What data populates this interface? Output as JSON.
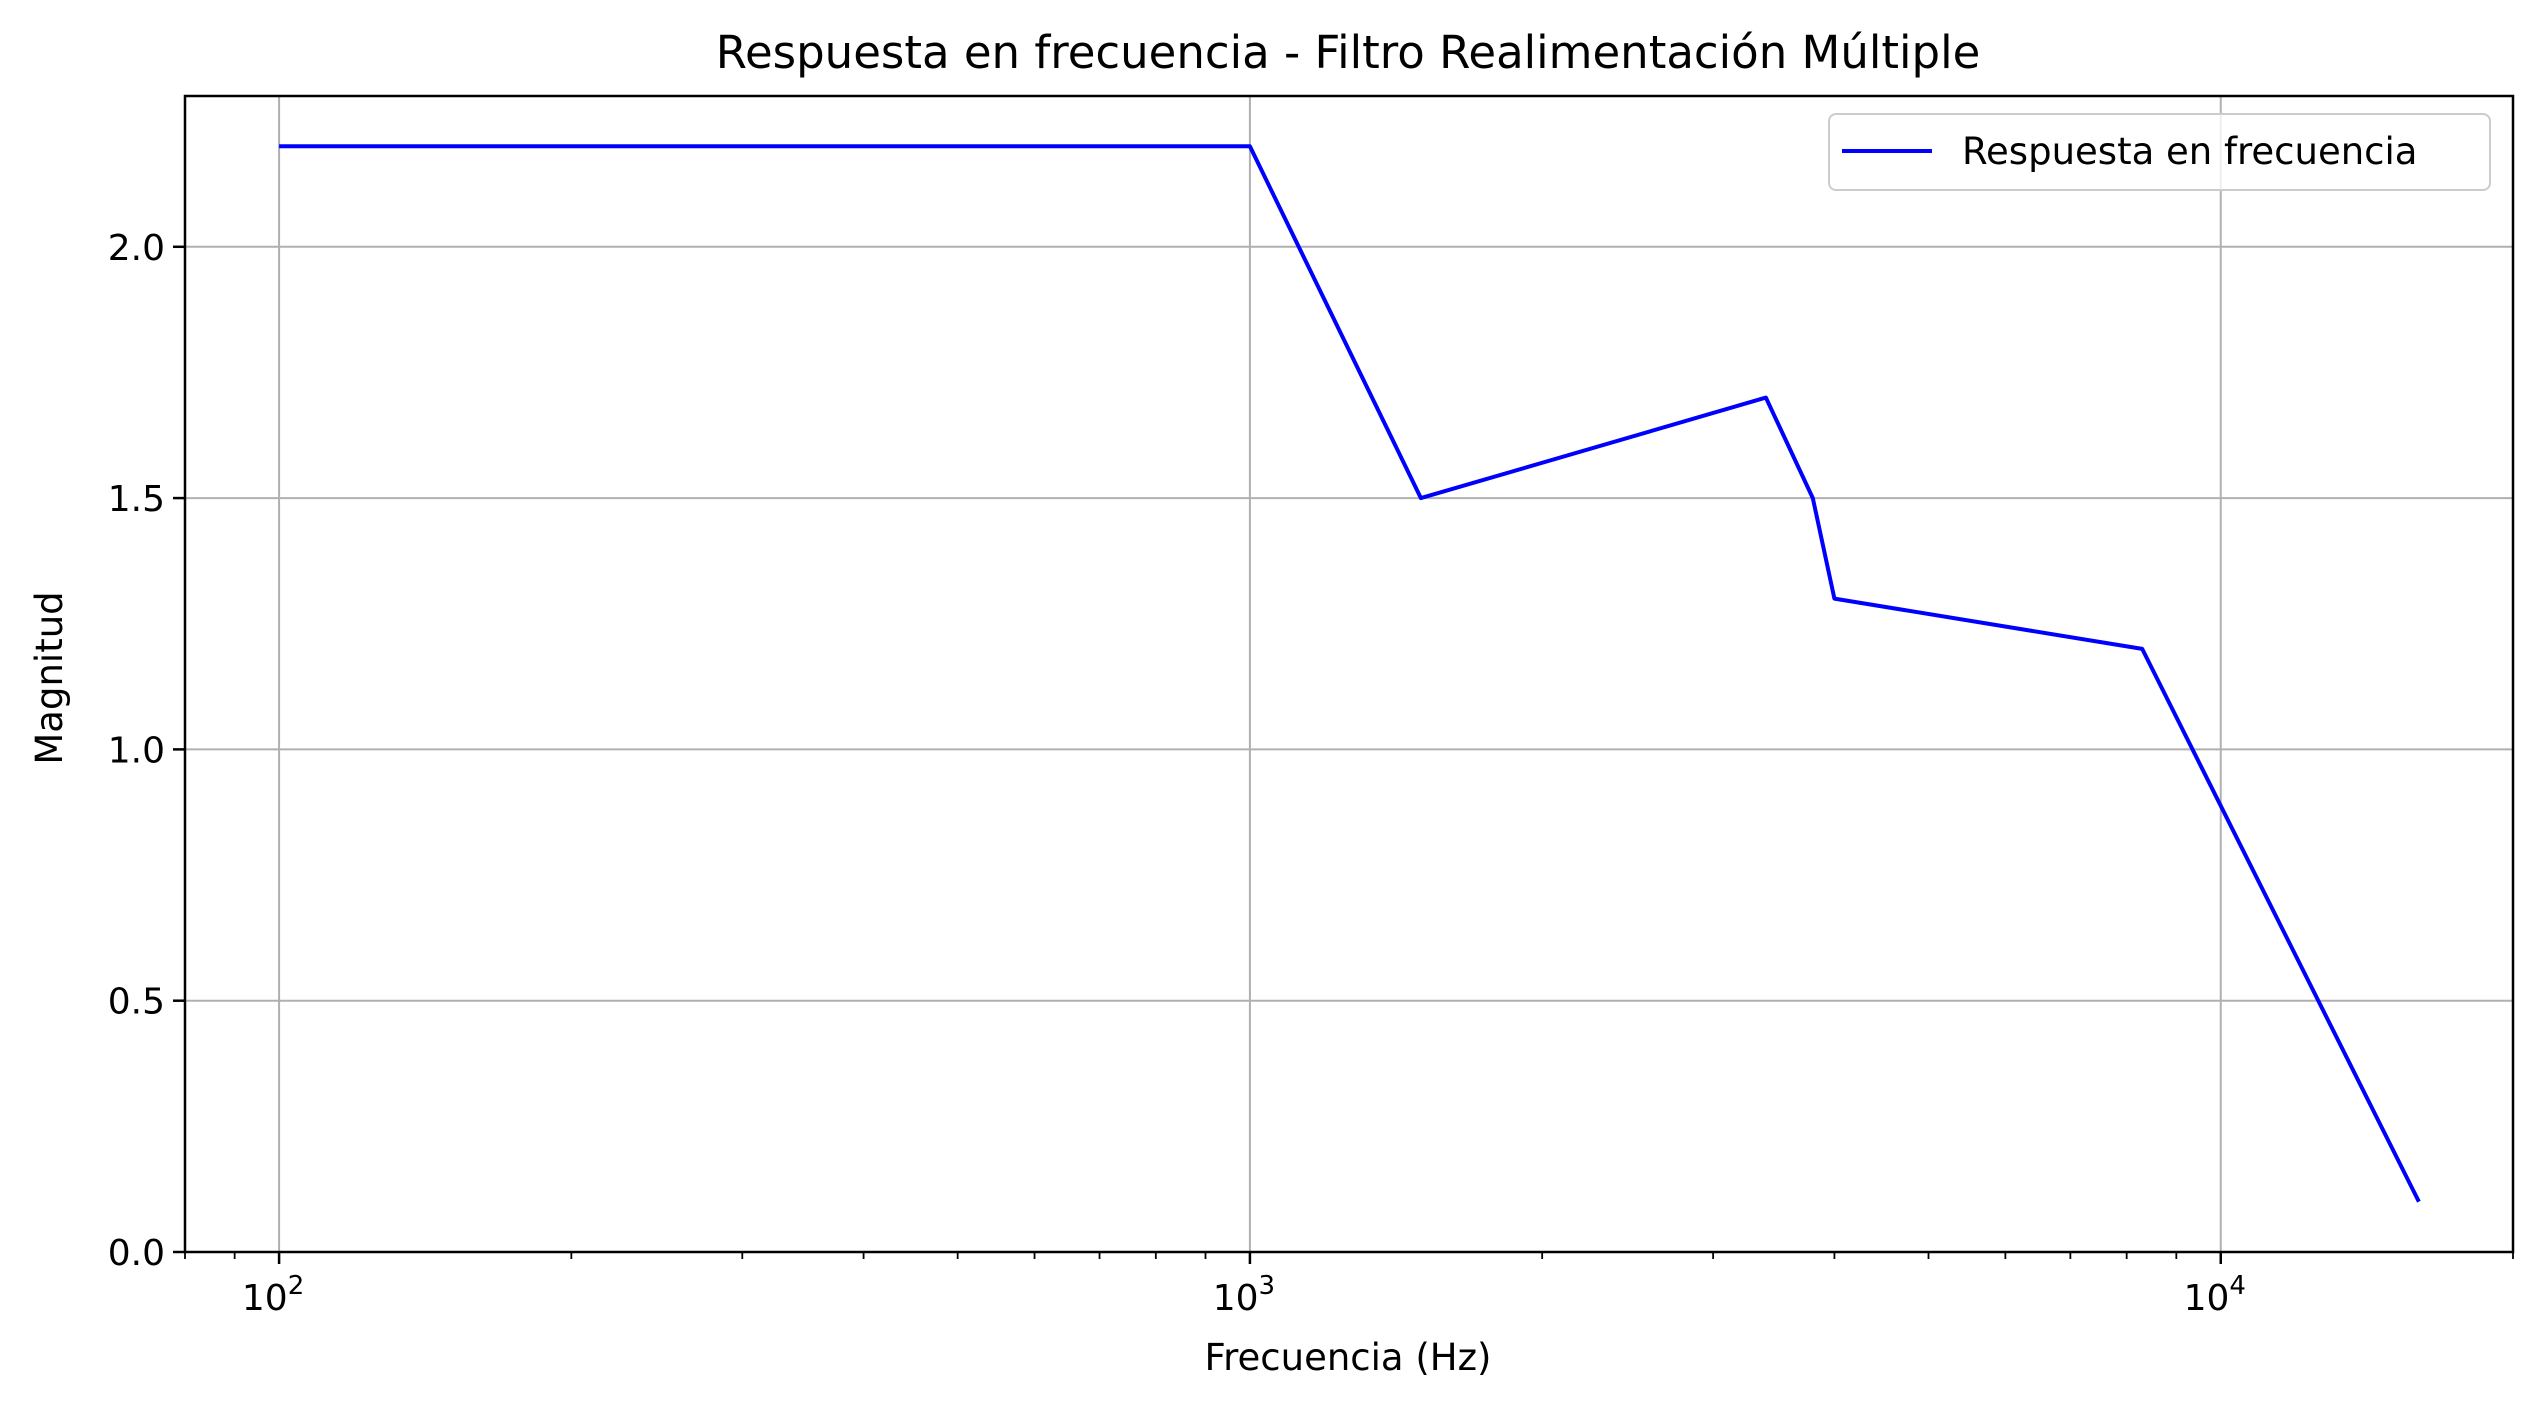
{
  "chart_data": {
    "type": "line",
    "title": "Respuesta en frecuencia - Filtro Realimentación Múltiple",
    "xlabel": "Frecuencia (Hz)",
    "ylabel": "Magnitud",
    "xscale": "log",
    "xlim": [
      80,
      20000
    ],
    "ylim": [
      0.0,
      2.3
    ],
    "grid": true,
    "legend_position": "upper right",
    "x_ticks": [
      {
        "value": 100,
        "base": "10",
        "exp": "2"
      },
      {
        "value": 1000,
        "base": "10",
        "exp": "3"
      },
      {
        "value": 10000,
        "base": "10",
        "exp": "4"
      }
    ],
    "y_ticks": [
      {
        "value": 0.0,
        "label": "0.0"
      },
      {
        "value": 0.5,
        "label": "0.5"
      },
      {
        "value": 1.0,
        "label": "1.0"
      },
      {
        "value": 1.5,
        "label": "1.5"
      },
      {
        "value": 2.0,
        "label": "2.0"
      }
    ],
    "series": [
      {
        "name": "Respuesta en frecuencia",
        "color": "#0000ff",
        "x": [
          100,
          1000,
          1500,
          3400,
          3800,
          4000,
          8300,
          16000
        ],
        "y": [
          2.2,
          2.2,
          1.5,
          1.7,
          1.5,
          1.3,
          1.2,
          0.1
        ]
      }
    ]
  }
}
